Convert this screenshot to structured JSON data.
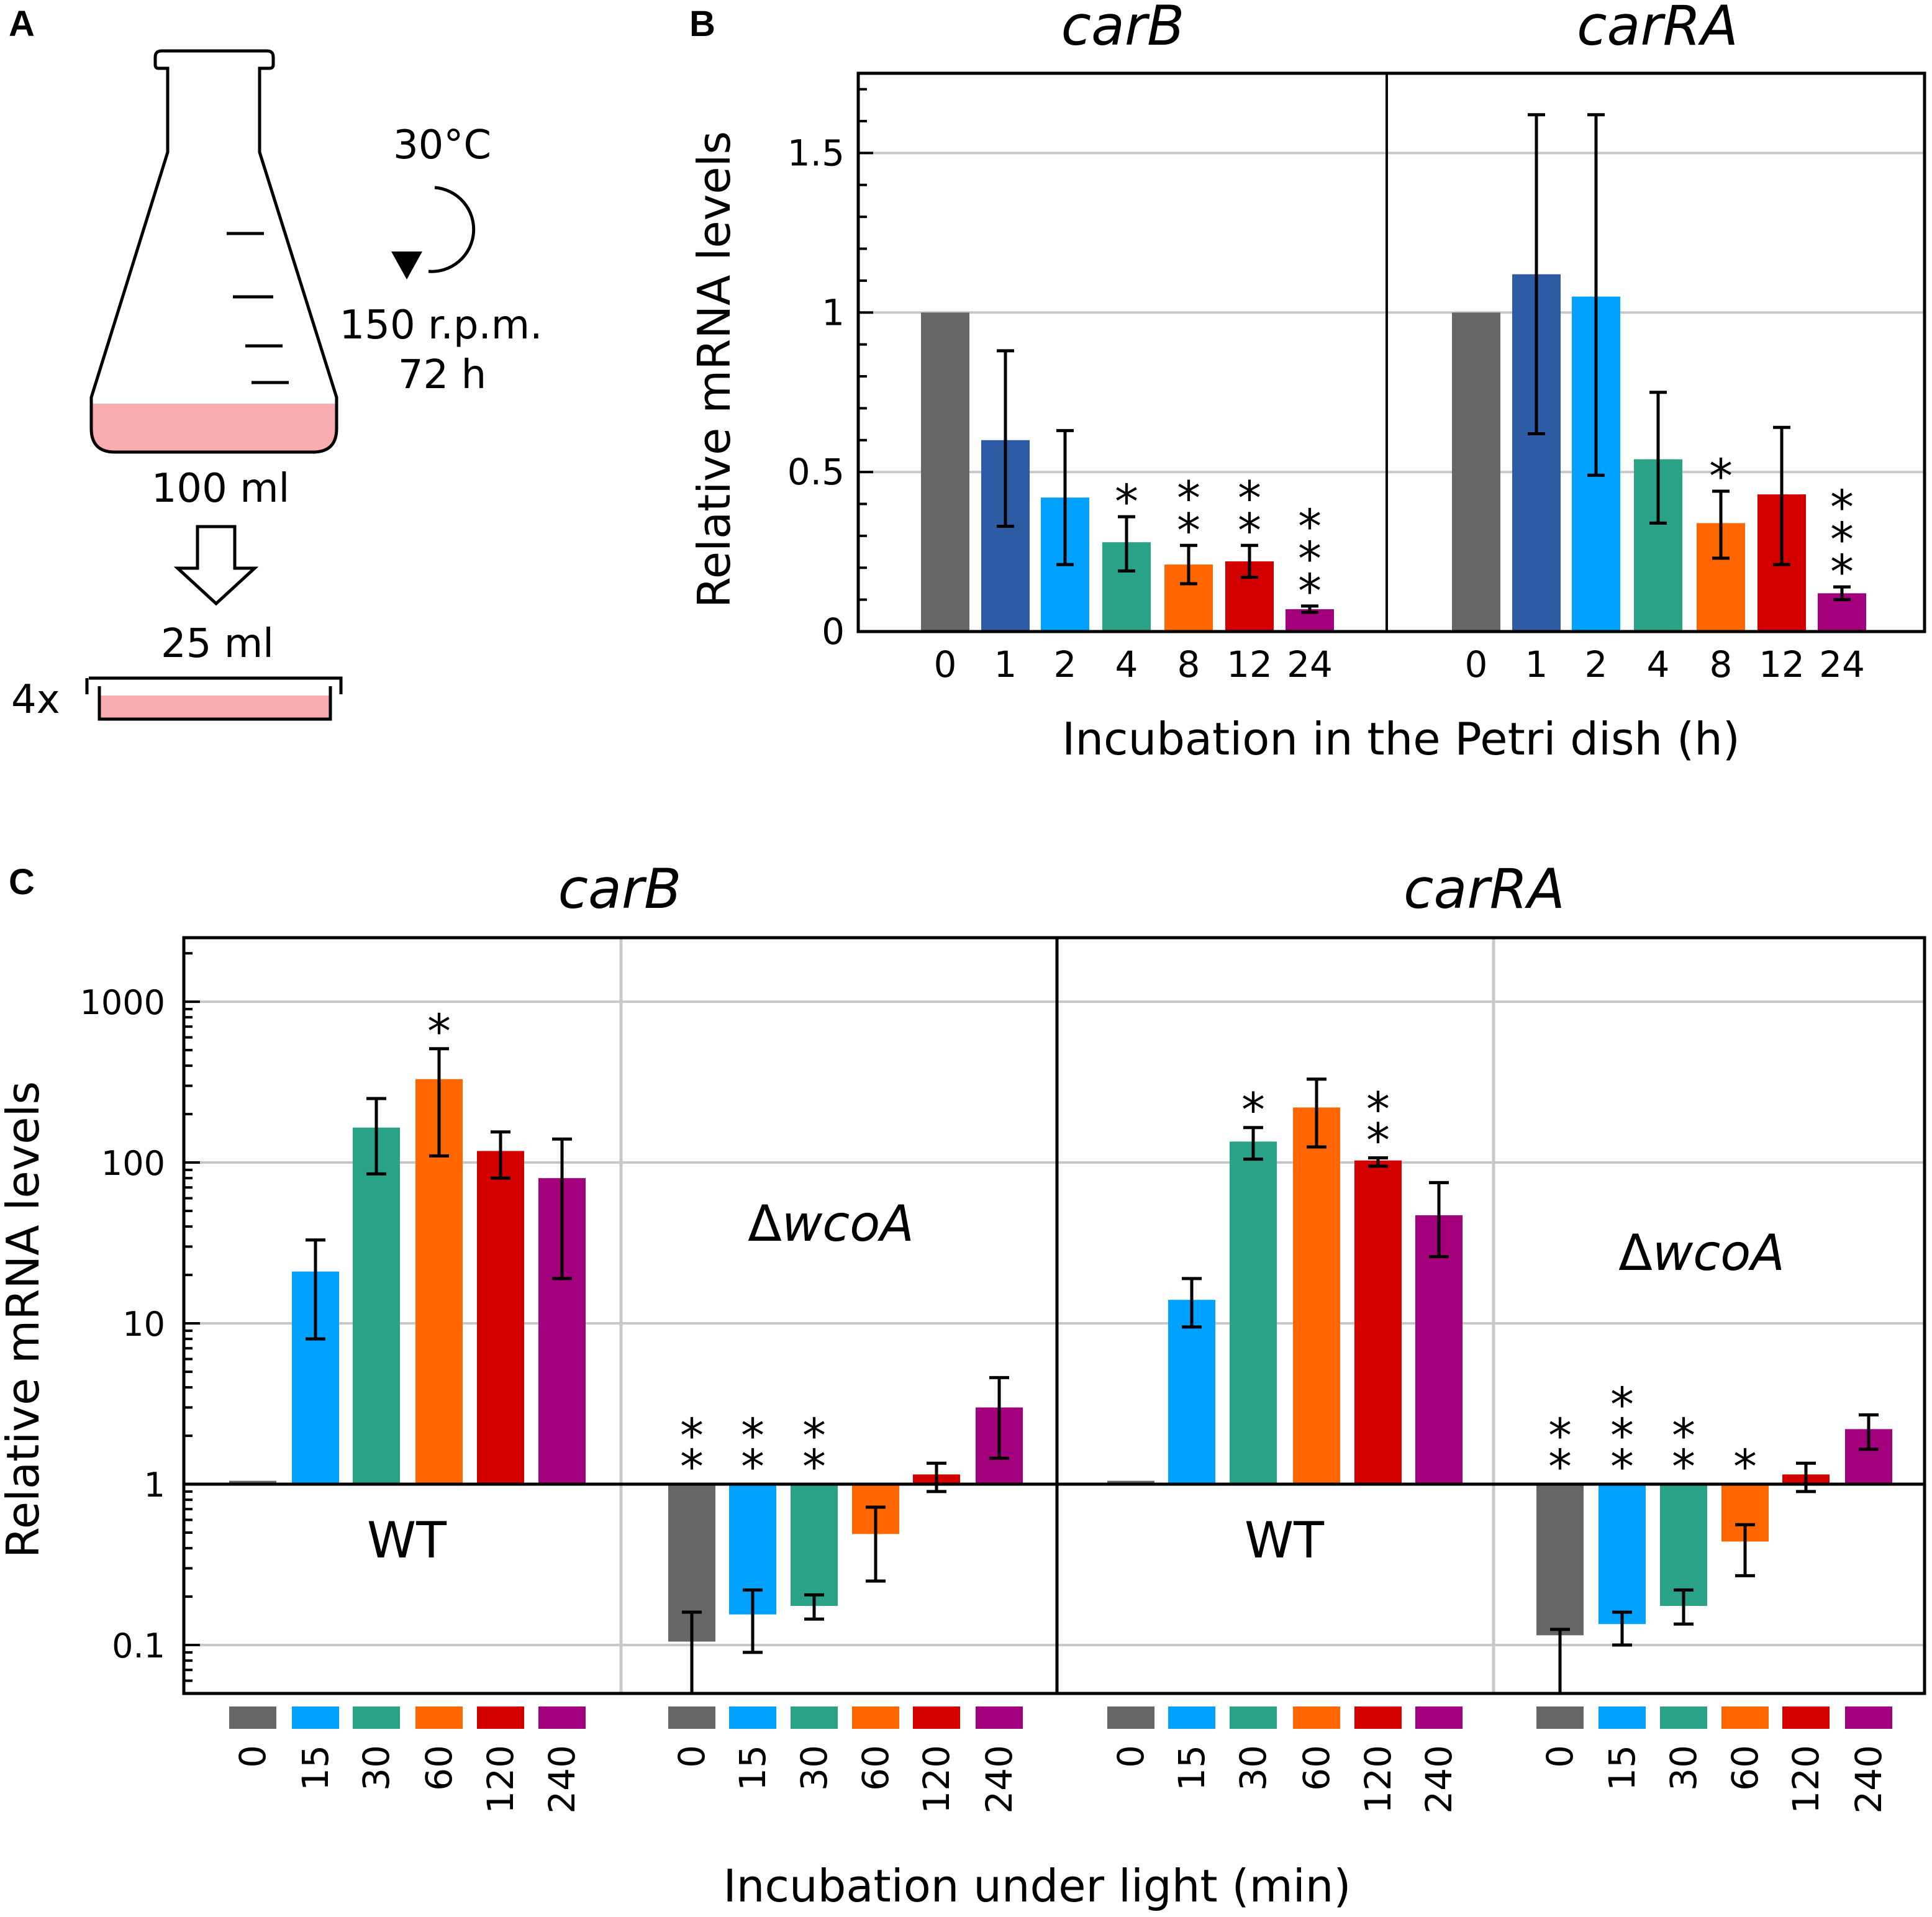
{
  "panels": {
    "a": "A",
    "b": "B",
    "c": "C"
  },
  "panel_a": {
    "temperature": "30°C",
    "speed": "150 r.p.m.",
    "duration": "72 h",
    "flask_volume": "100 ml",
    "dish_volume": "25 ml",
    "dish_count": "4x",
    "medium_color": "#f9acaf"
  },
  "colors": {
    "0": "#666666",
    "1": "#2e5ca4",
    "2": "#00a1ff",
    "4": "#2aa287",
    "8": "#ff6600",
    "12": "#d40000",
    "24": "#a4007d",
    "15": "#00a1ff",
    "30": "#2aa287",
    "60": "#ff6600",
    "120": "#d40000",
    "240": "#a4007d",
    "grid": "#c8c8c8"
  },
  "chart_data": [
    {
      "id": "B",
      "type": "bar",
      "title_left": "carB",
      "title_right": "carRA",
      "xlabel": "Incubation in the Petri dish (h)",
      "ylabel": "Relative mRNA levels",
      "ylim": [
        0,
        1.75
      ],
      "yticks": [
        0,
        0.5,
        1,
        1.5
      ],
      "ytick_labels": [
        "0",
        "0.5",
        "1",
        "1.5"
      ],
      "grid": true,
      "categories": [
        "0",
        "1",
        "2",
        "4",
        "8",
        "12",
        "24"
      ],
      "series": [
        {
          "name": "carB",
          "values": [
            1.0,
            0.6,
            0.42,
            0.28,
            0.21,
            0.22,
            0.07
          ],
          "err_low": [
            1.0,
            0.33,
            0.21,
            0.19,
            0.15,
            0.17,
            0.06
          ],
          "err_high": [
            1.0,
            0.88,
            0.63,
            0.36,
            0.27,
            0.27,
            0.08
          ],
          "significance": [
            "",
            "",
            "",
            "*",
            "**",
            "**",
            "***"
          ]
        },
        {
          "name": "carRA",
          "values": [
            1.0,
            1.12,
            1.05,
            0.54,
            0.34,
            0.43,
            0.12
          ],
          "err_low": [
            1.0,
            0.62,
            0.49,
            0.34,
            0.23,
            0.21,
            0.1
          ],
          "err_high": [
            1.0,
            1.62,
            1.62,
            0.75,
            0.44,
            0.64,
            0.14
          ],
          "significance": [
            "",
            "",
            "",
            "",
            "*",
            "",
            "***"
          ]
        }
      ]
    },
    {
      "id": "C",
      "type": "bar",
      "scale": "log",
      "title_left": "carB",
      "title_right": "carRA",
      "xlabel": "Incubation under light (min)",
      "ylabel": "Relative mRNA levels",
      "ylim": [
        0.05,
        2500
      ],
      "baseline": 1,
      "yticks": [
        0.1,
        1,
        10,
        100,
        1000
      ],
      "ytick_labels": [
        "0.1",
        "1",
        "10",
        "100",
        "1000"
      ],
      "grid": true,
      "categories": [
        "0",
        "15",
        "30",
        "60",
        "120",
        "240"
      ],
      "series": [
        {
          "name": "carB WT",
          "strain": "WT",
          "values": [
            1.05,
            21,
            165,
            330,
            118,
            80
          ],
          "err_low": [
            1.05,
            8,
            85,
            110,
            80,
            19
          ],
          "err_high": [
            1.05,
            33,
            250,
            510,
            155,
            140
          ],
          "significance": [
            "",
            "",
            "",
            "*",
            "",
            ""
          ]
        },
        {
          "name": "carB ΔwcoA",
          "strain": "ΔwcoA",
          "values": [
            0.105,
            0.155,
            0.175,
            0.49,
            1.15,
            3.0
          ],
          "err_low": [
            0.05,
            0.09,
            0.145,
            0.25,
            0.9,
            1.45
          ],
          "err_high": [
            0.16,
            0.22,
            0.205,
            0.72,
            1.35,
            4.6
          ],
          "significance": [
            "**",
            "**",
            "**",
            "",
            "",
            ""
          ]
        },
        {
          "name": "carRA WT",
          "strain": "WT",
          "values": [
            1.05,
            14,
            135,
            220,
            103,
            47
          ],
          "err_low": [
            1.05,
            9.5,
            105,
            125,
            95,
            26
          ],
          "err_high": [
            1.05,
            19,
            165,
            330,
            107,
            75
          ],
          "significance": [
            "",
            "",
            "*",
            "",
            "**",
            ""
          ]
        },
        {
          "name": "carRA ΔwcoA",
          "strain": "ΔwcoA",
          "values": [
            0.115,
            0.135,
            0.175,
            0.44,
            1.15,
            2.2
          ],
          "err_low": [
            0.05,
            0.1,
            0.135,
            0.27,
            0.9,
            1.65
          ],
          "err_high": [
            0.125,
            0.16,
            0.22,
            0.56,
            1.35,
            2.7
          ],
          "significance": [
            "**",
            "***",
            "**",
            "*",
            "",
            ""
          ]
        }
      ]
    }
  ]
}
